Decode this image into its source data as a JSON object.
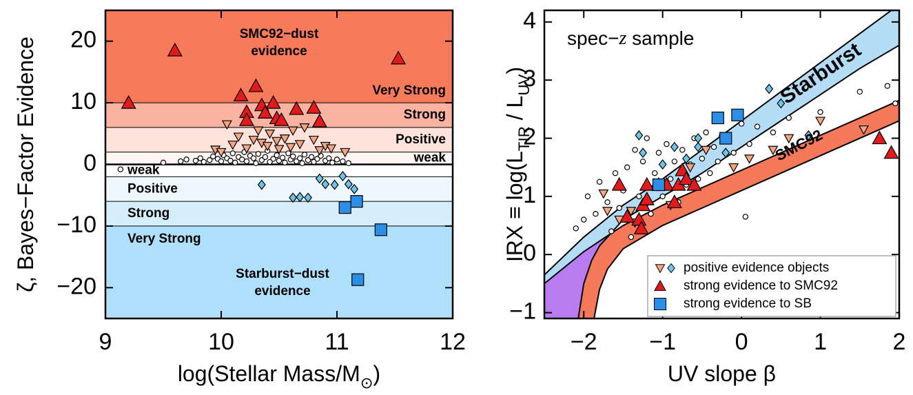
{
  "chart_data": [
    {
      "type": "scatter",
      "xlabel": {
        "parts": [
          {
            "text": "log(Stellar Mass/M"
          },
          {
            "text": "⊙",
            "sub": true
          },
          {
            "text": ")"
          }
        ]
      },
      "ylabel": {
        "parts": [
          {
            "text": "ζ, Bayes−Factor Evidence"
          }
        ]
      },
      "xlim": [
        9,
        12
      ],
      "ylim": [
        -25,
        25
      ],
      "xticks": [
        9,
        10,
        11,
        12
      ],
      "yticks": [
        {
          "value": -20,
          "label": "−20"
        },
        {
          "value": -10,
          "label": "−10"
        },
        0,
        10,
        20
      ],
      "bands": [
        {
          "from": 10,
          "to": 25,
          "color": "#f77b5b",
          "label": "Very Strong",
          "side": "right"
        },
        {
          "from": 6,
          "to": 10,
          "color": "#fab3a1",
          "label": "Strong",
          "side": "right"
        },
        {
          "from": 2,
          "to": 6,
          "color": "#fde3dc",
          "label": "Positive",
          "side": "right"
        },
        {
          "from": 0,
          "to": 2,
          "color": "#fff6f3",
          "label": "weak",
          "side": "right"
        },
        {
          "from": -2,
          "to": 0,
          "color": "#ffffff",
          "label": "weak",
          "side": "left"
        },
        {
          "from": -6,
          "to": -2,
          "color": "#edf7fe",
          "label": "Positive",
          "side": "left"
        },
        {
          "from": -10,
          "to": -6,
          "color": "#d6edfc",
          "label": "Strong",
          "side": "left"
        },
        {
          "from": -25,
          "to": -10,
          "color": "#aee0fb",
          "label": "Very Strong",
          "side": "left"
        }
      ],
      "annotations": [
        {
          "lines": [
            "SMC92−dust",
            "evidence"
          ]
        },
        {
          "lines": [
            "Starburst−dust",
            "evidence"
          ]
        }
      ],
      "series": [
        {
          "marker": "circle",
          "color": "#ffffff",
          "x": [
            9.13,
            9.5,
            9.65,
            9.7,
            9.78,
            9.82,
            9.85,
            9.9,
            9.93,
            9.97,
            10.0,
            10.02,
            10.05,
            10.08,
            10.1,
            10.12,
            10.15,
            10.18,
            10.2,
            10.22,
            10.25,
            10.28,
            10.3,
            10.32,
            10.35,
            10.38,
            10.4,
            10.42,
            10.45,
            10.48,
            10.5,
            10.53,
            10.55,
            10.58,
            10.6,
            10.62,
            10.65,
            10.68,
            10.7,
            10.72,
            10.75,
            10.78,
            10.8,
            10.83,
            10.86,
            10.9,
            10.93,
            10.96,
            11.0,
            11.05,
            11.1
          ],
          "y": [
            -0.8,
            0.3,
            0.5,
            0.8,
            0.6,
            1.0,
            0.4,
            0.7,
            1.3,
            0.9,
            0.5,
            1.5,
            1.0,
            0.6,
            1.8,
            0.3,
            1.2,
            0.8,
            2.0,
            0.5,
            1.4,
            1.0,
            0.2,
            1.7,
            0.7,
            1.2,
            2.2,
            0.4,
            0.9,
            1.5,
            0.6,
            1.1,
            0.3,
            1.8,
            0.8,
            1.3,
            0.5,
            1.0,
            0.2,
            1.6,
            0.7,
            1.2,
            0.4,
            0.9,
            1.4,
            0.6,
            1.0,
            0.3,
            0.8,
            0.5,
            0.2
          ]
        },
        {
          "marker": "triangle-down",
          "color": "#f4a582",
          "x": [
            9.95,
            10.0,
            10.05,
            10.1,
            10.15,
            10.22,
            10.28,
            10.32,
            10.35,
            10.4,
            10.42,
            10.48,
            10.5,
            10.55,
            10.6,
            10.62,
            10.68,
            10.72,
            10.8,
            10.85,
            10.9,
            10.95,
            11.07
          ],
          "y": [
            2.4,
            2.0,
            6.5,
            3.2,
            4.5,
            2.6,
            4.0,
            5.5,
            3.5,
            3.0,
            5.0,
            3.8,
            2.5,
            4.2,
            2.8,
            5.5,
            3.3,
            6.0,
            4.0,
            2.3,
            3.0,
            2.6,
            2.0
          ]
        },
        {
          "marker": "diamond",
          "color": "#6fc3e8",
          "x": [
            10.35,
            10.62,
            10.68,
            10.75,
            10.85,
            10.9,
            10.98,
            11.05,
            11.1,
            11.15
          ],
          "y": [
            -3.3,
            -5.4,
            -5.3,
            -5.4,
            -2.3,
            -3.2,
            -3.3,
            -1.9,
            -3.2,
            -4.0
          ]
        },
        {
          "marker": "triangle",
          "color": "#e31a1c",
          "x": [
            9.6,
            11.53,
            9.2,
            10.17,
            10.3,
            10.22,
            10.22,
            10.35,
            10.38,
            10.45,
            10.48,
            10.52,
            10.65,
            10.8,
            10.85
          ],
          "y": [
            18.5,
            17.2,
            10,
            11.2,
            12.7,
            8.5,
            7.2,
            9.6,
            8.4,
            10,
            7.5,
            7.2,
            9,
            9.2,
            7
          ]
        },
        {
          "marker": "square",
          "color": "#2b8fe8",
          "x": [
            11.18,
            11.38,
            11.17,
            11.07
          ],
          "y": [
            -18.7,
            -10.6,
            -6,
            -7
          ]
        }
      ]
    },
    {
      "type": "scatter",
      "xlabel": {
        "parts": [
          {
            "text": "UV slope β"
          }
        ]
      },
      "ylabel": {
        "parts": [
          {
            "text": "IRX ≡ log(L"
          },
          {
            "text": "TIR",
            "sub": true
          },
          {
            "text": " / L"
          },
          {
            "text": "UV",
            "sub": true
          },
          {
            "text": ")"
          }
        ]
      },
      "annotation": {
        "parts": [
          {
            "text": "spec−"
          },
          {
            "text": "z",
            "italic": true
          },
          {
            "text": " sample"
          }
        ]
      },
      "xlim": [
        -2.5,
        2
      ],
      "ylim": [
        -1.1,
        4.2
      ],
      "xticks": [
        {
          "value": -2,
          "label": "−2"
        },
        {
          "value": -1,
          "label": "−1"
        },
        0,
        1,
        2
      ],
      "yticks": [
        {
          "value": -1,
          "label": "−1"
        },
        0,
        1,
        2,
        3,
        4
      ],
      "models": [
        {
          "name": "SMC92",
          "color": "#f4785a",
          "x_upper": [
            -2.5,
            -2,
            -1.5,
            -1,
            -0.5,
            0,
            0.5,
            1,
            1.5,
            2
          ],
          "upper": [
            -0.5,
            0.05,
            0.5,
            0.85,
            1.15,
            1.45,
            1.75,
            2.05,
            2.35,
            2.65
          ],
          "x_lower": [
            -1.87,
            -1.8,
            -1.7,
            -1.5,
            -1,
            -0.5,
            0,
            0.5,
            1,
            1.5,
            2
          ],
          "lower": [
            -1.1,
            -0.6,
            -0.25,
            0.1,
            0.5,
            0.8,
            1.1,
            1.4,
            1.7,
            2.0,
            2.3
          ]
        },
        {
          "name": "Starburst",
          "color": "#b5dcf5",
          "overlap_color": "#b87cf0",
          "x_upper": [
            -2.5,
            -2,
            -1.5,
            -1,
            -0.5,
            0,
            0.5,
            1,
            1.5,
            2
          ],
          "upper": [
            -0.35,
            0.3,
            0.85,
            1.3,
            1.8,
            2.3,
            2.8,
            3.3,
            3.8,
            4.3
          ],
          "x_lower": [
            -2.07,
            -2,
            -1.9,
            -1.8,
            -1.5,
            -1,
            -0.5,
            0,
            0.5,
            1,
            1.5,
            2
          ],
          "lower": [
            -1.1,
            -0.5,
            -0.1,
            0.15,
            0.6,
            1.0,
            1.4,
            1.85,
            2.3,
            2.75,
            3.2,
            3.6
          ]
        }
      ],
      "series": [
        {
          "marker": "circle",
          "color": "#ffffff",
          "x": [
            -2.1,
            -2.0,
            -1.95,
            -1.85,
            -1.8,
            -1.7,
            -1.65,
            -1.6,
            -1.55,
            -1.5,
            -1.45,
            -1.4,
            -1.35,
            -1.3,
            -1.25,
            -1.2,
            -1.15,
            -1.1,
            -1.05,
            -1.0,
            -0.95,
            -0.9,
            -0.85,
            -0.8,
            -0.75,
            -0.7,
            -0.65,
            -0.6,
            -0.55,
            -0.5,
            -0.45,
            -0.4,
            -0.35,
            -0.3,
            -0.25,
            -0.1,
            0.0,
            0.05,
            0.1,
            0.2,
            0.4,
            0.6,
            1.0,
            1.5,
            1.85,
            1.95
          ],
          "y": [
            0.45,
            0.6,
            1.0,
            0.7,
            1.25,
            0.9,
            0.4,
            1.4,
            0.8,
            1.1,
            1.5,
            0.3,
            1.8,
            1.0,
            1.6,
            2.0,
            0.7,
            1.4,
            1.75,
            1.0,
            1.9,
            1.3,
            1.6,
            0.9,
            1.8,
            1.2,
            1.55,
            2.0,
            1.3,
            1.65,
            2.1,
            1.4,
            1.85,
            1.6,
            2.05,
            1.75,
            2.25,
            0.65,
            1.9,
            2.2,
            2.1,
            2.35,
            2.45,
            2.8,
            2.9,
            2.6
          ]
        },
        {
          "marker": "triangle-down",
          "color": "#f4a582",
          "x": [
            -1.75,
            -1.7,
            -1.55,
            -1.4,
            -1.35,
            -0.9,
            -0.65,
            -0.45,
            -0.1,
            0.1,
            0.4,
            0.6,
            1.0,
            1.55
          ],
          "y": [
            1.05,
            0.75,
            0.6,
            0.75,
            0.55,
            0.85,
            1.5,
            1.8,
            1.5,
            1.65,
            1.8,
            2.0,
            2.3,
            2.15
          ]
        },
        {
          "marker": "diamond",
          "color": "#6fc3e8",
          "x": [
            -1.3,
            -1.25,
            -1.0,
            -0.85,
            -0.55,
            -0.55,
            -0.2,
            0.35,
            0.5,
            0.85,
            -0.7
          ],
          "y": [
            2.05,
            1.75,
            1.55,
            1.85,
            1.85,
            2.0,
            1.75,
            2.85,
            2.6,
            2.05,
            1.65
          ]
        },
        {
          "marker": "triangle",
          "color": "#e31a1c",
          "x": [
            -1.55,
            -1.45,
            -1.3,
            -1.27,
            -1.25,
            -1.2,
            -1.2,
            -1.05,
            -0.95,
            -0.85,
            -0.8,
            -0.75,
            -0.7,
            -0.6,
            1.75,
            1.9
          ],
          "y": [
            1.2,
            0.65,
            0.6,
            0.45,
            0.85,
            0.95,
            1.2,
            1.2,
            1.2,
            0.9,
            1.2,
            1.45,
            1.3,
            1.2,
            2.0,
            1.75
          ]
        },
        {
          "marker": "square",
          "color": "#2b8fe8",
          "x": [
            -1.05,
            -0.3,
            -0.05,
            -0.2
          ],
          "y": [
            1.2,
            2.35,
            2.4,
            2.0
          ]
        }
      ],
      "legend": {
        "position": "lower right",
        "entries": [
          {
            "label": "positive evidence objects",
            "markers": [
              "triangle-down",
              "diamond"
            ]
          },
          {
            "label": "strong evidence to SMC92",
            "markers": [
              "triangle"
            ]
          },
          {
            "label": "strong evidence to SB",
            "markers": [
              "square"
            ]
          }
        ]
      }
    }
  ]
}
